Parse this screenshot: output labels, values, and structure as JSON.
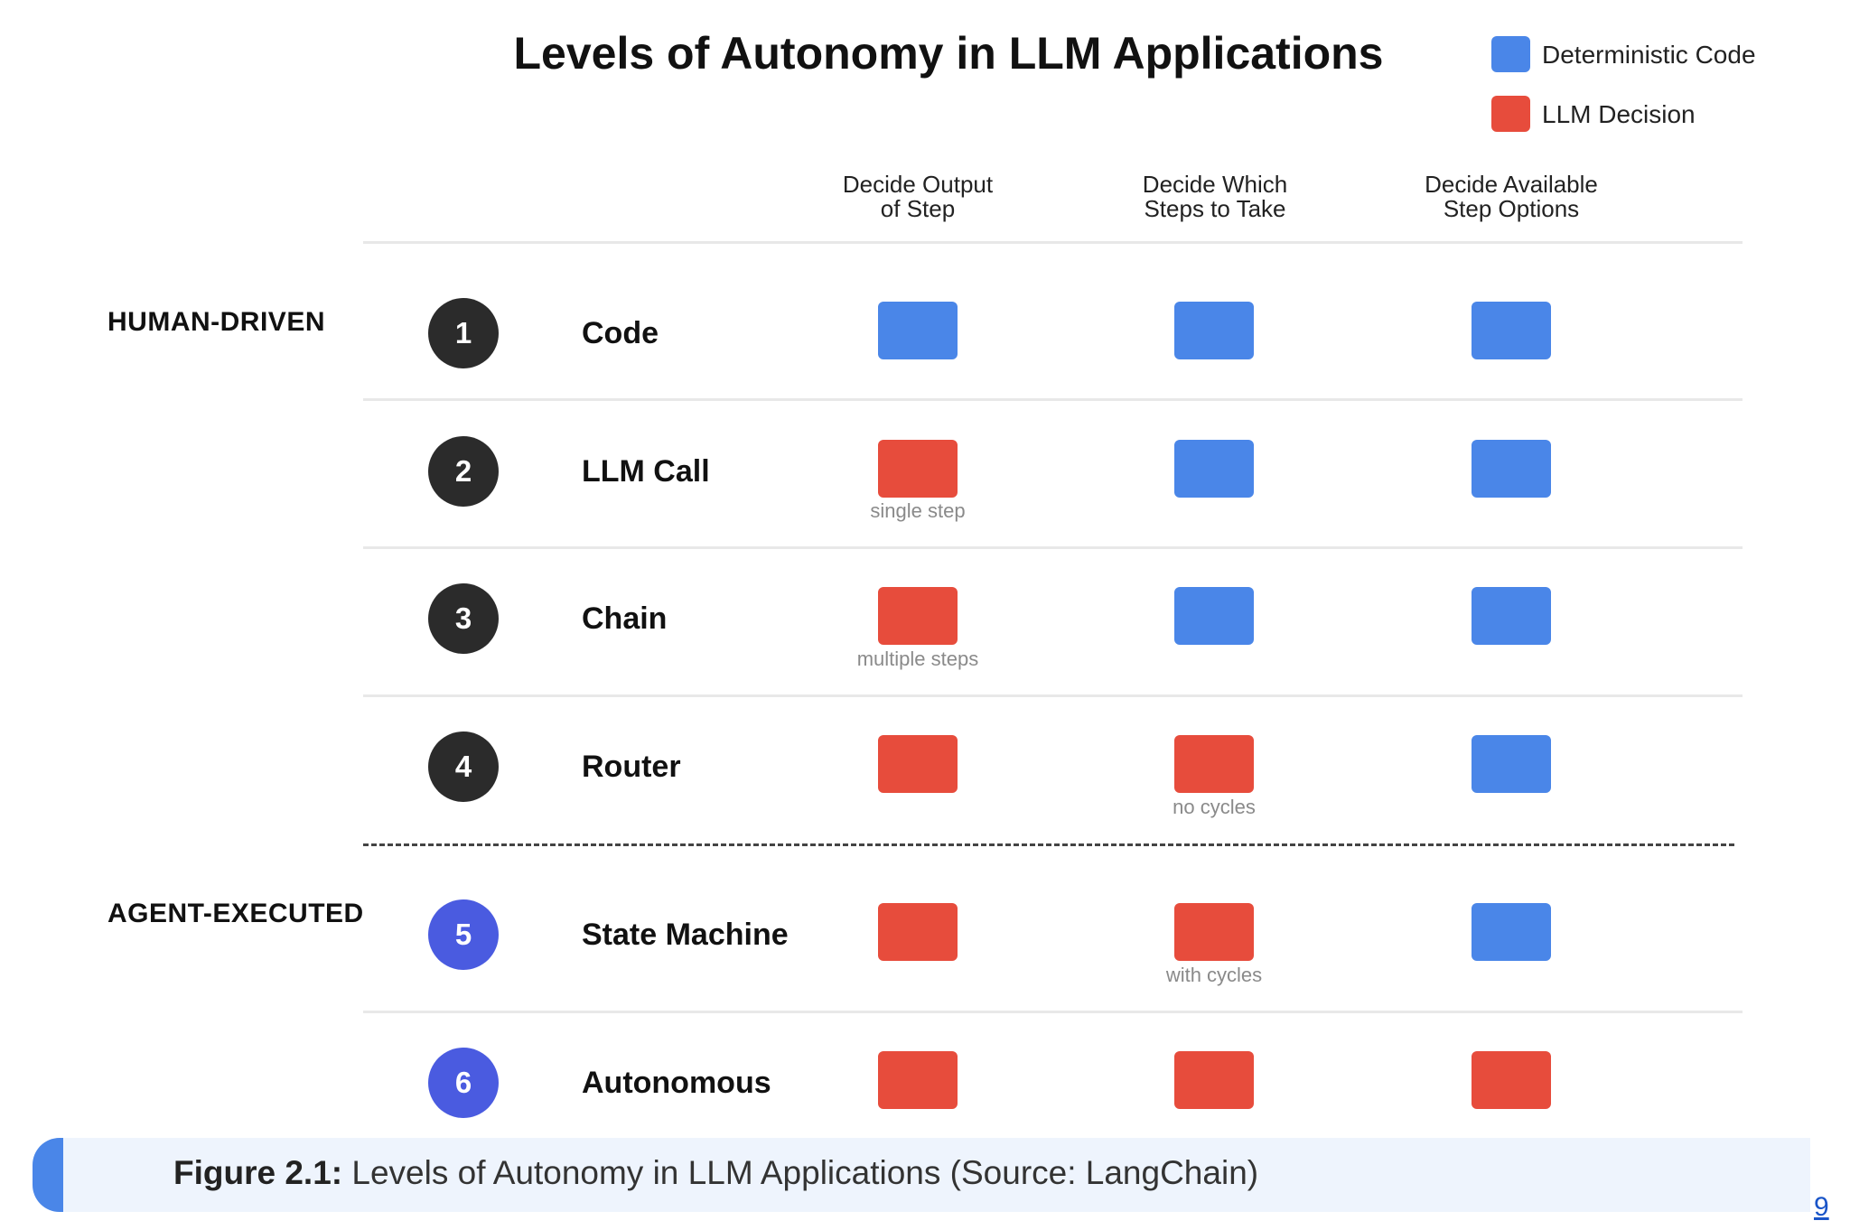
{
  "title": "Levels of Autonomy in LLM Applications",
  "legend": [
    {
      "label": "Deterministic Code",
      "color": "#4a86e8"
    },
    {
      "label": "LLM Decision",
      "color": "#e74c3c"
    }
  ],
  "columns": [
    {
      "line1": "Decide Output",
      "line2": "of Step"
    },
    {
      "line1": "Decide Which",
      "line2": "Steps to Take"
    },
    {
      "line1": "Decide Available",
      "line2": "Step Options"
    }
  ],
  "groups": {
    "human": "HUMAN-DRIVEN",
    "agent": "AGENT-EXECUTED"
  },
  "badge_colors": {
    "human": "#2b2b2b",
    "agent": "#4a5be0"
  },
  "levels": [
    {
      "num": "1",
      "name": "Code",
      "cells": [
        "blue",
        "blue",
        "blue"
      ],
      "notes": [
        "",
        "",
        ""
      ]
    },
    {
      "num": "2",
      "name": "LLM Call",
      "cells": [
        "red",
        "blue",
        "blue"
      ],
      "notes": [
        "single step",
        "",
        ""
      ]
    },
    {
      "num": "3",
      "name": "Chain",
      "cells": [
        "red",
        "blue",
        "blue"
      ],
      "notes": [
        "multiple steps",
        "",
        ""
      ]
    },
    {
      "num": "4",
      "name": "Router",
      "cells": [
        "red",
        "red",
        "blue"
      ],
      "notes": [
        "",
        "no cycles",
        ""
      ]
    },
    {
      "num": "5",
      "name": "State Machine",
      "cells": [
        "red",
        "red",
        "blue"
      ],
      "notes": [
        "",
        "with cycles",
        ""
      ]
    },
    {
      "num": "6",
      "name": "Autonomous",
      "cells": [
        "red",
        "red",
        "red"
      ],
      "notes": [
        "",
        "",
        ""
      ]
    }
  ],
  "caption": {
    "label": "Figure 2.1:",
    "text": " Levels of Autonomy in LLM Applications (Source: LangChain)"
  },
  "page_number": "9"
}
